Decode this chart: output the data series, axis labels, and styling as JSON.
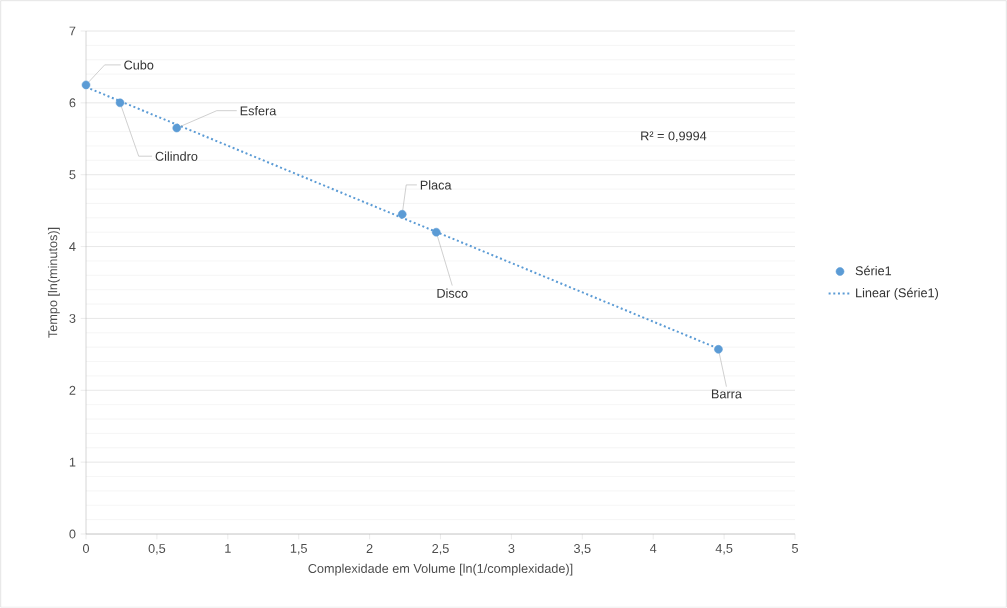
{
  "chart_data": {
    "type": "scatter",
    "xlabel": "Complexidade  em Volume [ln(1/complexidade)]",
    "ylabel": "Tempo  [ln(minutos)]",
    "x": [
      0,
      0.24,
      0.64,
      2.23,
      2.47,
      4.46
    ],
    "series": [
      {
        "name": "Série1",
        "color": "#5b9bd5",
        "marker": "circle",
        "values": [
          6.25,
          6.0,
          5.65,
          4.45,
          4.2,
          2.57
        ]
      },
      {
        "name": "Linear (Série1)",
        "type": "line",
        "color": "#5b9bd5",
        "line_style": "dotted",
        "marker": "none",
        "x": [
          0,
          4.46
        ],
        "values": [
          6.22,
          2.58
        ]
      }
    ],
    "xlim": [
      0,
      5
    ],
    "xticks": [
      0,
      {
        "value": 0.5,
        "label": "0,5"
      },
      1,
      {
        "value": 1.5,
        "label": "1,5"
      },
      2,
      {
        "value": 2.5,
        "label": "2,5"
      },
      3,
      {
        "value": 3.5,
        "label": "3,5"
      },
      4,
      {
        "value": 4.5,
        "label": "4,5"
      },
      5
    ],
    "ylim": [
      0,
      7
    ],
    "yticks": [
      0,
      1,
      2,
      3,
      4,
      5,
      6,
      7
    ],
    "grid": "y",
    "legend": "right",
    "annotations": [
      {
        "text": "Cubo",
        "x": 0,
        "y": 6.25
      },
      {
        "text": "Cilindro",
        "x": 0.24,
        "y": 6.0
      },
      {
        "text": "Esfera",
        "x": 0.64,
        "y": 5.65
      },
      {
        "text": "Placa",
        "x": 2.23,
        "y": 4.45
      },
      {
        "text": "Disco",
        "x": 2.47,
        "y": 4.2
      },
      {
        "text": "Barra",
        "x": 4.46,
        "y": 2.57
      },
      "R² = 0,9994"
    ]
  }
}
